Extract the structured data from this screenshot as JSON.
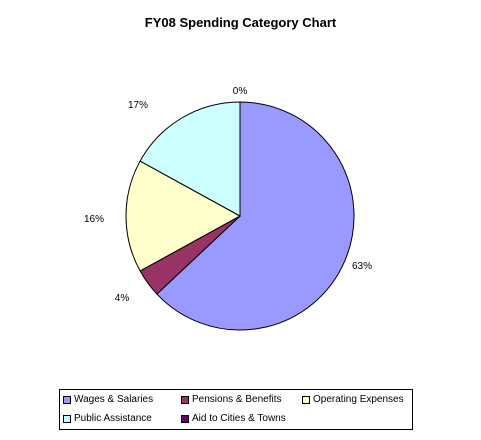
{
  "chart_data": {
    "type": "pie",
    "title": "FY08 Spending Category Chart",
    "categories": [
      "Wages & Salaries",
      "Pensions & Benefits",
      "Operating Expenses",
      "Public Assistance",
      "Aid to Cities & Towns"
    ],
    "values": [
      63,
      4,
      16,
      17,
      0
    ],
    "data_labels": [
      "63%",
      "4%",
      "16%",
      "17%",
      "0%"
    ],
    "colors": [
      "#9999ff",
      "#993366",
      "#ffffcc",
      "#ccffff",
      "#660066"
    ],
    "legend_position": "bottom"
  }
}
